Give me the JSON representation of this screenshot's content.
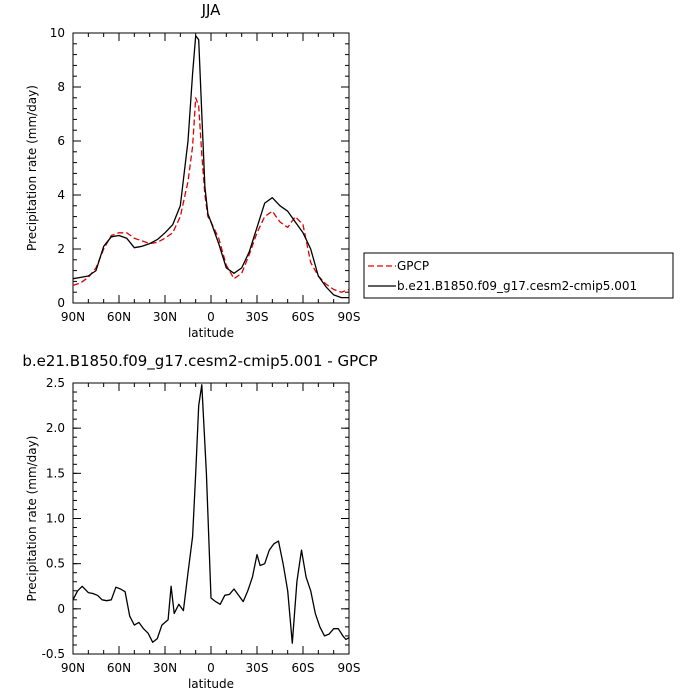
{
  "chart_data": [
    {
      "type": "line",
      "title": "JJA",
      "xlabel": "latitude",
      "ylabel": "Precipitation rate (mm/day)",
      "xlim": [
        90,
        -90
      ],
      "ylim": [
        0,
        10
      ],
      "xticks": [
        90,
        60,
        30,
        0,
        -30,
        -60,
        -90
      ],
      "xtick_labels": [
        "90N",
        "60N",
        "30N",
        "0",
        "30S",
        "60S",
        "90S"
      ],
      "yticks": [
        0,
        2,
        4,
        6,
        8,
        10
      ],
      "ytick_labels": [
        "0",
        "2",
        "4",
        "6",
        "8",
        "10"
      ],
      "grid": false,
      "legend_position": "outside-right",
      "series": [
        {
          "name": "GPCP",
          "color": "#e00000",
          "dash": "dashed",
          "x": [
            90,
            85,
            80,
            75,
            70,
            65,
            60,
            55,
            50,
            45,
            40,
            35,
            30,
            25,
            20,
            15,
            12,
            10,
            8,
            6,
            4,
            2,
            0,
            -5,
            -10,
            -15,
            -20,
            -25,
            -30,
            -35,
            -40,
            -45,
            -50,
            -55,
            -60,
            -65,
            -70,
            -75,
            -80,
            -85,
            -90
          ],
          "y": [
            0.65,
            0.75,
            0.95,
            1.3,
            2.0,
            2.5,
            2.6,
            2.6,
            2.4,
            2.3,
            2.2,
            2.25,
            2.4,
            2.6,
            3.2,
            4.5,
            5.8,
            7.6,
            7.3,
            5.5,
            4.0,
            3.2,
            3.0,
            2.4,
            1.4,
            0.9,
            1.1,
            1.8,
            2.6,
            3.2,
            3.4,
            3.0,
            2.8,
            3.2,
            2.9,
            1.5,
            1.0,
            0.7,
            0.5,
            0.4,
            0.5
          ]
        },
        {
          "name": "b.e21.B1850.f09_g17.cesm2-cmip5.001",
          "color": "#000000",
          "dash": "solid",
          "x": [
            90,
            85,
            80,
            75,
            70,
            65,
            60,
            55,
            50,
            45,
            40,
            35,
            30,
            25,
            20,
            15,
            12,
            10,
            8,
            6,
            4,
            2,
            0,
            -5,
            -10,
            -15,
            -20,
            -25,
            -30,
            -35,
            -40,
            -45,
            -50,
            -55,
            -60,
            -65,
            -70,
            -75,
            -80,
            -85,
            -90
          ],
          "y": [
            0.9,
            0.95,
            1.0,
            1.2,
            2.1,
            2.45,
            2.5,
            2.4,
            2.05,
            2.1,
            2.2,
            2.35,
            2.6,
            2.9,
            3.6,
            6.0,
            8.5,
            9.9,
            9.75,
            7.0,
            4.3,
            3.3,
            3.0,
            2.2,
            1.3,
            1.1,
            1.3,
            1.9,
            2.8,
            3.7,
            3.9,
            3.6,
            3.4,
            3.0,
            2.6,
            2.0,
            1.0,
            0.6,
            0.3,
            0.2,
            0.2
          ]
        }
      ]
    },
    {
      "type": "line",
      "title": "b.e21.B1850.f09_g17.cesm2-cmip5.001 - GPCP",
      "xlabel": "latitude",
      "ylabel": "Precipitation rate (mm/day)",
      "xlim": [
        90,
        -90
      ],
      "ylim": [
        -0.5,
        2.5
      ],
      "xticks": [
        90,
        60,
        30,
        0,
        -30,
        -60,
        -90
      ],
      "xtick_labels": [
        "90N",
        "60N",
        "30N",
        "0",
        "30S",
        "60S",
        "90S"
      ],
      "yticks": [
        -0.5,
        0,
        0.5,
        1.0,
        1.5,
        2.0,
        2.5
      ],
      "ytick_labels": [
        "-0.5",
        "0",
        "0.5",
        "1.0",
        "1.5",
        "2.0",
        "2.5"
      ],
      "grid": false,
      "series": [
        {
          "color": "#000000",
          "dash": "solid",
          "x": [
            90,
            87,
            84,
            80,
            77,
            74,
            71,
            68,
            65,
            62,
            59,
            56,
            53,
            50,
            47,
            44,
            41,
            38,
            35,
            32,
            30,
            28,
            26,
            24,
            21,
            18,
            15,
            12,
            10,
            8,
            6,
            3,
            0,
            -3,
            -6,
            -9,
            -12,
            -15,
            -18,
            -21,
            -24,
            -27,
            -30,
            -32,
            -35,
            -38,
            -41,
            -44,
            -47,
            -50,
            -53,
            -56,
            -59,
            -62,
            -65,
            -68,
            -71,
            -74,
            -77,
            -80,
            -83,
            -86,
            -88,
            -90
          ],
          "y": [
            0.1,
            0.2,
            0.25,
            0.18,
            0.17,
            0.15,
            0.1,
            0.09,
            0.1,
            0.24,
            0.22,
            0.19,
            -0.08,
            -0.18,
            -0.15,
            -0.22,
            -0.27,
            -0.37,
            -0.33,
            -0.18,
            -0.15,
            -0.12,
            0.25,
            -0.05,
            0.05,
            -0.02,
            0.4,
            0.8,
            1.5,
            2.25,
            2.48,
            1.5,
            0.12,
            0.08,
            0.05,
            0.15,
            0.16,
            0.22,
            0.15,
            0.08,
            0.2,
            0.35,
            0.6,
            0.48,
            0.5,
            0.65,
            0.72,
            0.75,
            0.5,
            0.2,
            -0.38,
            0.3,
            0.65,
            0.35,
            0.2,
            -0.05,
            -0.2,
            -0.3,
            -0.28,
            -0.22,
            -0.22,
            -0.3,
            -0.34,
            -0.32
          ]
        }
      ]
    }
  ]
}
